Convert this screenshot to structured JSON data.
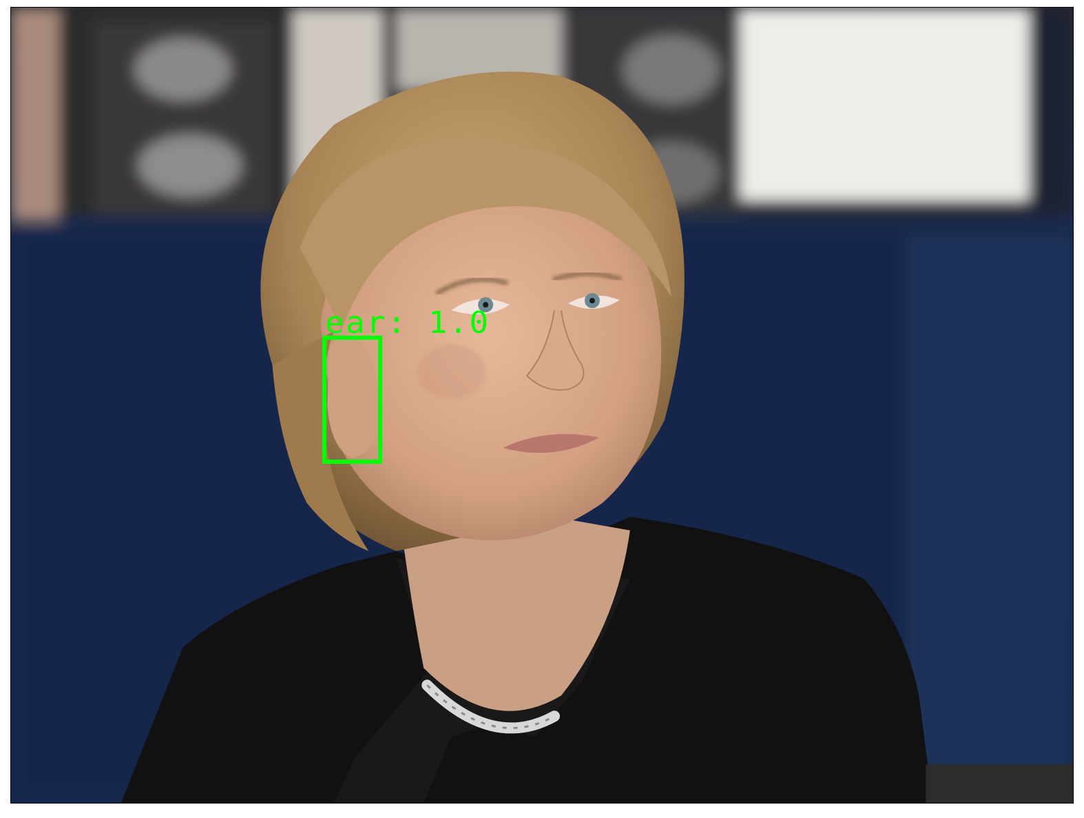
{
  "detection": {
    "label_text": "ear: 1.0",
    "class_name": "ear",
    "score": 1.0,
    "color": "#00ff00"
  },
  "scene": {
    "description_colors": {
      "background_navy": "#15264a",
      "background_light": "#e8e6e2",
      "hair": "#b08e5e",
      "skin": "#d9a888",
      "jacket": "#111111",
      "necklace": "#cfcfcf"
    }
  }
}
